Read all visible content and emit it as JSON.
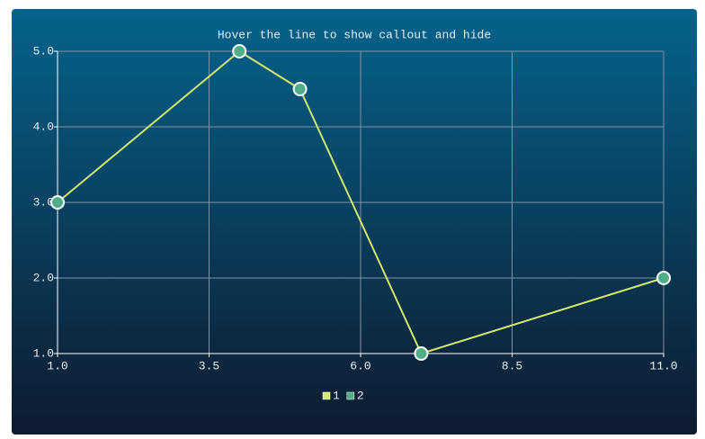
{
  "chart_data": {
    "type": "line",
    "title": "Hover the line to show callout and hide",
    "x": [
      1,
      4,
      5,
      7,
      11
    ],
    "series": [
      {
        "name": "1",
        "type": "line",
        "color": "#d2e86c",
        "values": [
          3,
          5,
          4.5,
          1,
          2
        ]
      },
      {
        "name": "2",
        "type": "scatter",
        "color": "#4fae86",
        "values": [
          3,
          5,
          4.5,
          1,
          2
        ]
      }
    ],
    "xlim": [
      1,
      11
    ],
    "xticks": [
      {
        "value": 1,
        "label": "1.0"
      },
      {
        "value": 3.5,
        "label": "3.5"
      },
      {
        "value": 6,
        "label": "6.0"
      },
      {
        "value": 8.5,
        "label": "8.5"
      },
      {
        "value": 11,
        "label": "11.0"
      }
    ],
    "ylim": [
      1,
      5
    ],
    "yticks": [
      {
        "value": 1,
        "label": "1.0"
      },
      {
        "value": 2,
        "label": "2.0"
      },
      {
        "value": 3,
        "label": "3.0"
      },
      {
        "value": 4,
        "label": "4.0"
      },
      {
        "value": 5,
        "label": "5.0"
      }
    ],
    "grid": true,
    "legend": "bottom"
  }
}
